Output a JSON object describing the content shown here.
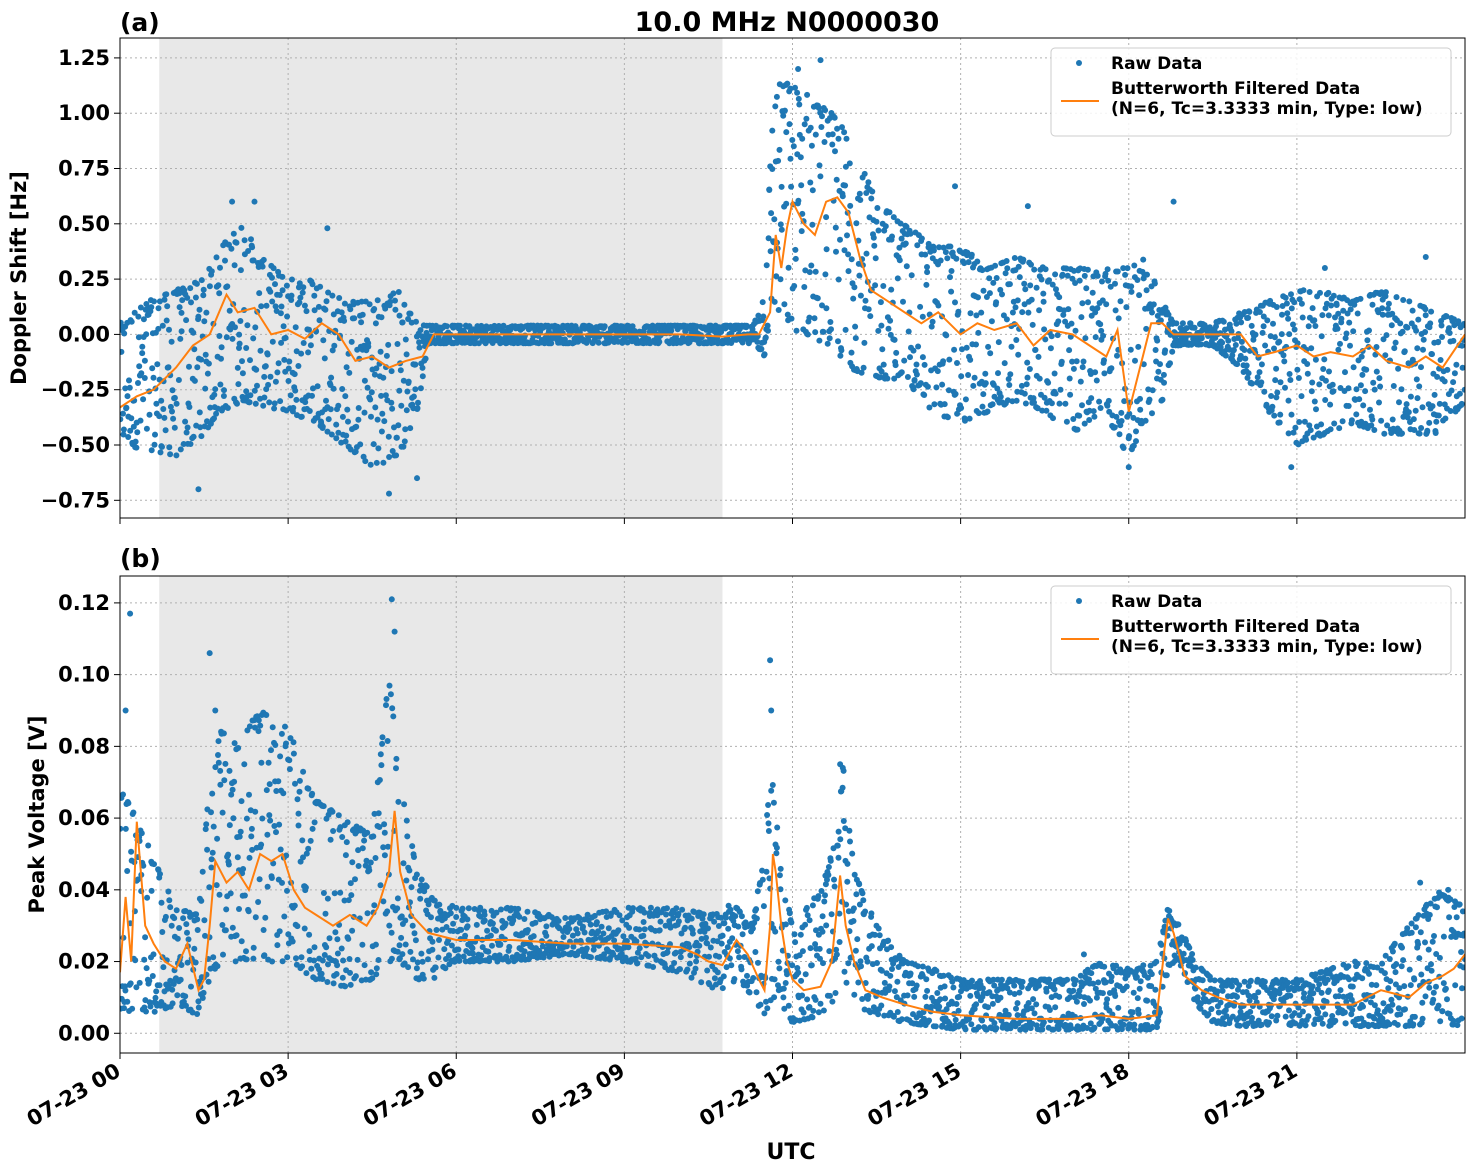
{
  "figure": {
    "title": "10.0 MHz N0000030",
    "xlabel": "UTC"
  },
  "colors": {
    "raw": "#1f77b4",
    "filtered": "#ff7f0e",
    "night_shade": "#e8e8e8",
    "grid": "#b0b0b0"
  },
  "chart_data": [
    {
      "type": "scatter",
      "panel_label": "(a)",
      "title": "10.0 MHz N0000030",
      "xlabel": "",
      "ylabel": "Doppler Shift [Hz]",
      "x_unit": "hours UTC, 2023-07-23",
      "xlim": [
        0,
        24
      ],
      "ylim": [
        -0.83,
        1.34
      ],
      "yticks": [
        -0.75,
        -0.5,
        -0.25,
        0.0,
        0.25,
        0.5,
        0.75,
        1.0,
        1.25
      ],
      "ytick_labels": [
        "−0.75",
        "−0.50",
        "−0.25",
        "0.00",
        "0.25",
        "0.50",
        "0.75",
        "1.00",
        "1.25"
      ],
      "grid": true,
      "legend_position": "top-right",
      "shaded_interval": [
        0.7,
        10.75
      ],
      "series": [
        {
          "name": "Raw Data",
          "style": "points",
          "envelope": {
            "x": [
              0,
              0.5,
              1,
              1.5,
              1.8,
              2.2,
              2.5,
              3,
              3.5,
              4,
              4.5,
              5,
              5.3,
              5.5,
              6,
              7,
              8,
              9,
              10,
              10.75,
              11.3,
              11.5,
              11.65,
              11.8,
              12.2,
              12.7,
              13,
              13.5,
              14,
              14.5,
              15,
              15.5,
              16,
              16.5,
              17,
              17.5,
              18,
              18.3,
              18.6,
              18.8,
              19,
              19.5,
              20,
              20.5,
              21,
              21.5,
              22,
              22.5,
              23,
              23.5,
              24
            ],
            "min": [
              -0.5,
              -0.52,
              -0.55,
              -0.45,
              -0.35,
              -0.3,
              -0.32,
              -0.35,
              -0.4,
              -0.5,
              -0.6,
              -0.55,
              -0.35,
              -0.04,
              -0.04,
              -0.04,
              -0.04,
              -0.04,
              -0.04,
              -0.04,
              -0.04,
              -0.1,
              0.15,
              0.05,
              0.0,
              -0.05,
              -0.15,
              -0.2,
              -0.2,
              -0.35,
              -0.4,
              -0.35,
              -0.3,
              -0.35,
              -0.45,
              -0.35,
              -0.55,
              -0.4,
              -0.3,
              -0.05,
              -0.05,
              -0.05,
              -0.15,
              -0.35,
              -0.5,
              -0.45,
              -0.4,
              -0.45,
              -0.45,
              -0.45,
              -0.3
            ],
            "max": [
              0.05,
              0.15,
              0.2,
              0.25,
              0.4,
              0.5,
              0.35,
              0.25,
              0.25,
              0.15,
              0.15,
              0.2,
              0.05,
              0.04,
              0.04,
              0.04,
              0.04,
              0.04,
              0.04,
              0.04,
              0.04,
              0.2,
              1.05,
              1.15,
              1.1,
              1.0,
              0.9,
              0.6,
              0.5,
              0.4,
              0.4,
              0.3,
              0.35,
              0.3,
              0.3,
              0.3,
              0.3,
              0.35,
              0.15,
              0.05,
              0.05,
              0.05,
              0.1,
              0.15,
              0.2,
              0.2,
              0.15,
              0.2,
              0.15,
              0.1,
              0.05
            ]
          },
          "outliers": [
            {
              "x": 2.0,
              "y": 0.6
            },
            {
              "x": 2.4,
              "y": 0.6
            },
            {
              "x": 3.7,
              "y": 0.48
            },
            {
              "x": 1.4,
              "y": -0.7
            },
            {
              "x": 4.8,
              "y": -0.72
            },
            {
              "x": 5.3,
              "y": -0.65
            },
            {
              "x": 12.1,
              "y": 1.2
            },
            {
              "x": 12.5,
              "y": 1.24
            },
            {
              "x": 14.9,
              "y": 0.67
            },
            {
              "x": 16.2,
              "y": 0.58
            },
            {
              "x": 18.8,
              "y": 0.6
            },
            {
              "x": 21.5,
              "y": 0.3
            },
            {
              "x": 23.3,
              "y": 0.35
            },
            {
              "x": 18.0,
              "y": -0.6
            },
            {
              "x": 20.9,
              "y": -0.6
            }
          ]
        },
        {
          "name": "Butterworth Filtered Data\n(N=6, Tc=3.3333 min, Type: low)",
          "style": "line",
          "x": [
            0,
            0.3,
            0.6,
            1,
            1.3,
            1.6,
            1.9,
            2.1,
            2.4,
            2.7,
            3,
            3.3,
            3.6,
            3.9,
            4.2,
            4.5,
            4.8,
            5.1,
            5.4,
            5.6,
            6,
            7,
            8,
            9,
            10,
            10.75,
            11.2,
            11.4,
            11.5,
            11.6,
            11.7,
            11.8,
            11.9,
            12.0,
            12.2,
            12.4,
            12.6,
            12.8,
            13.0,
            13.2,
            13.4,
            13.7,
            14.0,
            14.3,
            14.6,
            15.0,
            15.3,
            15.6,
            16.0,
            16.3,
            16.6,
            17.0,
            17.3,
            17.6,
            17.8,
            18.0,
            18.2,
            18.4,
            18.6,
            18.8,
            19.0,
            19.5,
            20.0,
            20.3,
            20.6,
            21.0,
            21.3,
            21.6,
            22.0,
            22.3,
            22.6,
            23.0,
            23.3,
            23.6,
            24
          ],
          "y": [
            -0.33,
            -0.28,
            -0.25,
            -0.15,
            -0.05,
            0.0,
            0.18,
            0.1,
            0.12,
            0.0,
            0.02,
            -0.02,
            0.05,
            0.0,
            -0.12,
            -0.1,
            -0.15,
            -0.12,
            -0.1,
            0.0,
            0.0,
            0.0,
            0.0,
            0.0,
            0.0,
            -0.01,
            0.0,
            0.0,
            0.05,
            0.1,
            0.45,
            0.3,
            0.48,
            0.6,
            0.5,
            0.45,
            0.6,
            0.62,
            0.55,
            0.35,
            0.2,
            0.15,
            0.1,
            0.05,
            0.1,
            0.0,
            0.05,
            0.02,
            0.05,
            -0.05,
            0.02,
            0.0,
            -0.05,
            -0.1,
            0.02,
            -0.35,
            -0.15,
            0.05,
            0.05,
            0.0,
            0.0,
            0.0,
            0.0,
            -0.1,
            -0.08,
            -0.05,
            -0.1,
            -0.08,
            -0.1,
            -0.05,
            -0.12,
            -0.15,
            -0.1,
            -0.15,
            0.0
          ]
        }
      ]
    },
    {
      "type": "scatter",
      "panel_label": "(b)",
      "title": "",
      "xlabel": "UTC",
      "ylabel": "Peak Voltage [V]",
      "x_unit": "hours UTC, 2023-07-23",
      "xlim": [
        0,
        24
      ],
      "ylim": [
        -0.0055,
        0.1275
      ],
      "yticks": [
        0.0,
        0.02,
        0.04,
        0.06,
        0.08,
        0.1,
        0.12
      ],
      "ytick_labels": [
        "0.00",
        "0.02",
        "0.04",
        "0.06",
        "0.08",
        "0.10",
        "0.12"
      ],
      "xticks": [
        0,
        3,
        6,
        9,
        12,
        15,
        18,
        21
      ],
      "xtick_labels": [
        "07-23 00",
        "07-23 03",
        "07-23 06",
        "07-23 09",
        "07-23 12",
        "07-23 15",
        "07-23 18",
        "07-23 21"
      ],
      "grid": true,
      "legend_position": "top-right",
      "shaded_interval": [
        0.7,
        10.75
      ],
      "series": [
        {
          "name": "Raw Data",
          "style": "points",
          "envelope": {
            "x": [
              0,
              0.3,
              0.7,
              1,
              1.4,
              1.6,
              1.8,
              2,
              2.5,
              3,
              3.5,
              4,
              4.5,
              4.8,
              5.0,
              5.3,
              5.6,
              6,
              7,
              8,
              9,
              10,
              10.5,
              10.75,
              11,
              11.3,
              11.5,
              11.65,
              11.8,
              12,
              12.5,
              12.8,
              12.9,
              13.1,
              13.5,
              14,
              14.5,
              15,
              16,
              17,
              17.5,
              18,
              18.5,
              18.7,
              18.9,
              19.2,
              19.5,
              20,
              21,
              22,
              22.5,
              23,
              23.5,
              24
            ],
            "min": [
              0.006,
              0.006,
              0.006,
              0.008,
              0.005,
              0.015,
              0.02,
              0.02,
              0.02,
              0.02,
              0.015,
              0.013,
              0.015,
              0.02,
              0.02,
              0.015,
              0.015,
              0.02,
              0.02,
              0.022,
              0.02,
              0.017,
              0.013,
              0.012,
              0.015,
              0.01,
              0.005,
              0.01,
              0.008,
              0.003,
              0.005,
              0.01,
              0.015,
              0.008,
              0.005,
              0.003,
              0.002,
              0.001,
              0.001,
              0.001,
              0.001,
              0.001,
              0.001,
              0.018,
              0.02,
              0.008,
              0.003,
              0.002,
              0.002,
              0.002,
              0.002,
              0.002,
              0.003,
              0.002
            ],
            "max": [
              0.07,
              0.06,
              0.045,
              0.035,
              0.033,
              0.07,
              0.085,
              0.08,
              0.09,
              0.085,
              0.065,
              0.06,
              0.055,
              0.1,
              0.07,
              0.045,
              0.038,
              0.035,
              0.035,
              0.032,
              0.035,
              0.035,
              0.033,
              0.036,
              0.035,
              0.03,
              0.055,
              0.075,
              0.045,
              0.03,
              0.04,
              0.055,
              0.075,
              0.045,
              0.03,
              0.02,
              0.018,
              0.015,
              0.015,
              0.015,
              0.02,
              0.018,
              0.02,
              0.035,
              0.03,
              0.02,
              0.015,
              0.015,
              0.015,
              0.02,
              0.02,
              0.03,
              0.04,
              0.035
            ]
          },
          "outliers": [
            {
              "x": 0.18,
              "y": 0.117
            },
            {
              "x": 0.1,
              "y": 0.09
            },
            {
              "x": 1.6,
              "y": 0.106
            },
            {
              "x": 1.7,
              "y": 0.09
            },
            {
              "x": 4.85,
              "y": 0.121
            },
            {
              "x": 4.9,
              "y": 0.112
            },
            {
              "x": 11.6,
              "y": 0.104
            },
            {
              "x": 11.62,
              "y": 0.09
            },
            {
              "x": 12.85,
              "y": 0.075
            },
            {
              "x": 17.2,
              "y": 0.022
            },
            {
              "x": 23.2,
              "y": 0.042
            },
            {
              "x": 23.7,
              "y": 0.04
            }
          ]
        },
        {
          "name": "Butterworth Filtered Data\n(N=6, Tc=3.3333 min, Type: low)",
          "style": "line",
          "x": [
            0,
            0.1,
            0.2,
            0.3,
            0.45,
            0.6,
            0.8,
            1.0,
            1.2,
            1.4,
            1.5,
            1.6,
            1.7,
            1.9,
            2.1,
            2.3,
            2.5,
            2.7,
            2.9,
            3.1,
            3.3,
            3.5,
            3.8,
            4.1,
            4.4,
            4.6,
            4.8,
            4.9,
            5.0,
            5.2,
            5.5,
            6,
            7,
            8,
            9,
            10,
            10.3,
            10.5,
            10.75,
            11.0,
            11.2,
            11.4,
            11.5,
            11.6,
            11.65,
            11.7,
            11.8,
            11.9,
            12.0,
            12.2,
            12.5,
            12.7,
            12.85,
            12.95,
            13.1,
            13.3,
            13.6,
            14.0,
            14.5,
            15,
            16,
            17,
            17.5,
            18,
            18.5,
            18.7,
            18.8,
            19.0,
            19.3,
            19.6,
            20,
            21,
            22,
            22.5,
            23,
            23.3,
            23.6,
            23.8,
            24
          ],
          "y": [
            0.017,
            0.038,
            0.02,
            0.059,
            0.03,
            0.025,
            0.02,
            0.018,
            0.025,
            0.012,
            0.015,
            0.03,
            0.048,
            0.042,
            0.045,
            0.04,
            0.05,
            0.048,
            0.05,
            0.04,
            0.035,
            0.033,
            0.03,
            0.033,
            0.03,
            0.035,
            0.045,
            0.062,
            0.045,
            0.033,
            0.028,
            0.026,
            0.026,
            0.025,
            0.025,
            0.024,
            0.022,
            0.02,
            0.019,
            0.026,
            0.022,
            0.015,
            0.012,
            0.03,
            0.05,
            0.045,
            0.03,
            0.02,
            0.015,
            0.012,
            0.013,
            0.02,
            0.044,
            0.03,
            0.02,
            0.012,
            0.01,
            0.008,
            0.006,
            0.005,
            0.004,
            0.004,
            0.005,
            0.004,
            0.005,
            0.032,
            0.028,
            0.016,
            0.012,
            0.01,
            0.008,
            0.008,
            0.008,
            0.012,
            0.01,
            0.014,
            0.016,
            0.018,
            0.022
          ]
        }
      ]
    }
  ]
}
